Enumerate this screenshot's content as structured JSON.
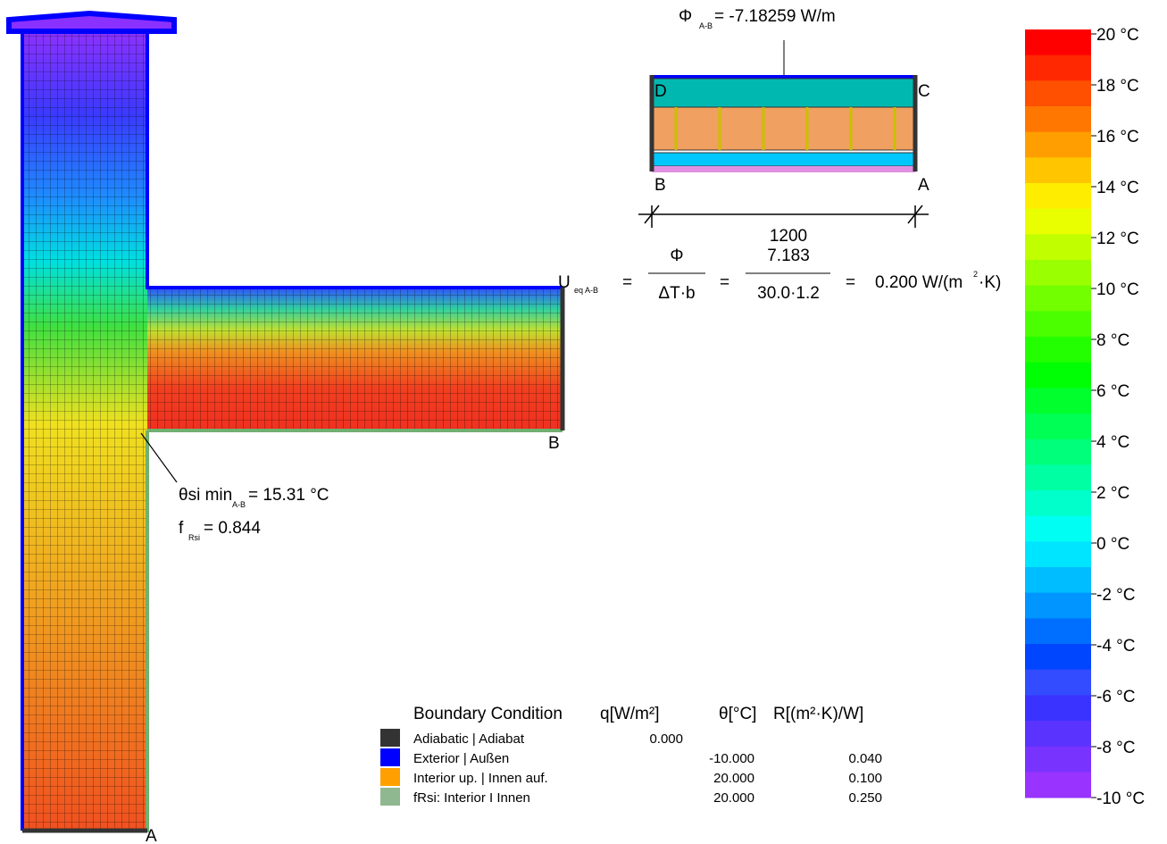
{
  "flux": {
    "symbol": "Φ",
    "subscript": "A-B",
    "value": "= -7.18259 W/m"
  },
  "section": {
    "corners": [
      "D",
      "C",
      "B",
      "A"
    ],
    "width": "1200"
  },
  "u_value": {
    "symbol": "U",
    "subscript": "eq A-B",
    "eq1": "=",
    "num1": "Φ",
    "den1": "ΔT·b",
    "eq2": "=",
    "num2": "7.183",
    "den2": "30.0·1.2",
    "eq3": "=",
    "result": "0.200 W/(m",
    "result_sup": "2",
    "result_end": "·K)"
  },
  "main_labels": {
    "b": "B",
    "a": "A"
  },
  "surface_temp": {
    "symbol": "θsi min",
    "subscript": "A-B",
    "value": "= 15.31 °C"
  },
  "frsi": {
    "symbol": "f",
    "subscript": "Rsi",
    "value": "= 0.844"
  },
  "color_scale": {
    "labels": [
      "20 °C",
      "18 °C",
      "16 °C",
      "14 °C",
      "12 °C",
      "10 °C",
      "8 °C",
      "6 °C",
      "4 °C",
      "2 °C",
      "0 °C",
      "-2 °C",
      "-4 °C",
      "-6 °C",
      "-8 °C",
      "-10 °C"
    ]
  },
  "boundary_table": {
    "headers": [
      "Boundary Condition",
      "q[W/m²]",
      "θ[°C]",
      "R[(m²·K)/W]"
    ],
    "rows": [
      {
        "name": "Adiabatic | Adiabat",
        "q": "0.000"
      },
      {
        "name": "Exterior | Außen",
        "theta": "-10.000",
        "r": "0.040"
      },
      {
        "name": "Interior up. | Innen auf.",
        "theta": "20.000",
        "r": "0.100"
      },
      {
        "name": "fRsi: Interior I Innen",
        "theta": "20.000",
        "r": "0.250"
      }
    ]
  }
}
